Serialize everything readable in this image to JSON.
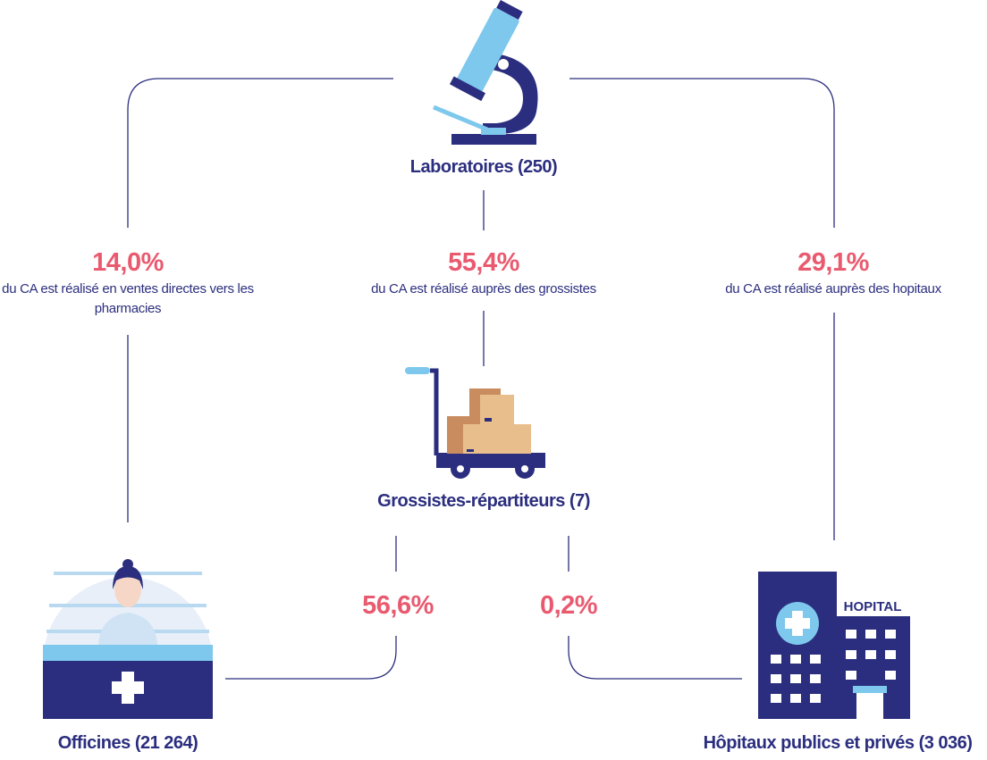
{
  "nodes": [
    {
      "label": "Laboratoires (250)"
    },
    {
      "label": "Grossistes-répartiteurs (7)"
    },
    {
      "label": "Officines (21 264)"
    },
    {
      "label": "Hôpitaux publics et privés (3 036)",
      "sign": "HOPITAL"
    }
  ],
  "flows": [
    {
      "share": "14,0%",
      "description": "du CA est réalisé en ventes directes vers les pharmacies"
    },
    {
      "share": "55,4%",
      "description": "du CA est réalisé auprès des grossistes"
    },
    {
      "share": "29,1%",
      "description": "du CA est réalisé auprès des hopitaux"
    },
    {
      "share": "56,6%"
    },
    {
      "share": "0,2%"
    }
  ]
}
